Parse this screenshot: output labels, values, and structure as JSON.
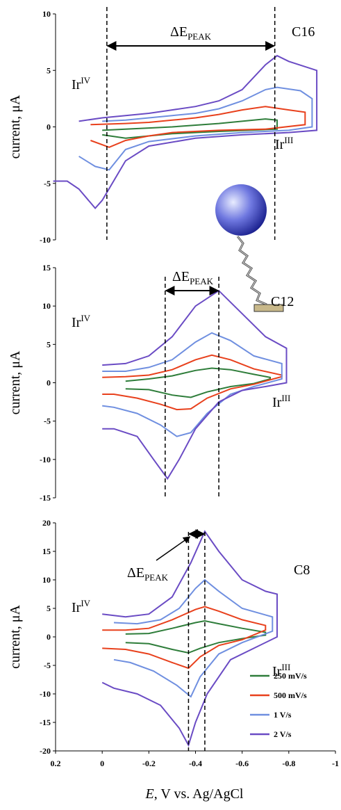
{
  "chart_data": [
    {
      "type": "line",
      "title": "C16",
      "ylabel": "current, μA",
      "xlim": [
        0.2,
        -1
      ],
      "ylim": [
        -10,
        10
      ],
      "yticks": [
        -10,
        -5,
        0,
        5,
        10
      ],
      "vlines": [
        -0.02,
        -0.74
      ],
      "annotations": [
        {
          "text": "ΔE",
          "sub": "PEAK"
        },
        {
          "text": "Ir",
          "sup": "IV"
        },
        {
          "text": "Ir",
          "sup": "III"
        }
      ],
      "series": [
        {
          "color": "#2e7d3a",
          "x": [
            0,
            -0.1,
            -0.3,
            -0.5,
            -0.7,
            -0.75,
            -0.75,
            -0.5,
            -0.3,
            -0.1,
            0
          ],
          "values": [
            -0.3,
            -0.2,
            0,
            0.3,
            0.7,
            0.6,
            -0.2,
            -0.4,
            -0.6,
            -1,
            -0.7
          ]
        },
        {
          "color": "#e8401c",
          "x": [
            0.05,
            -0.1,
            -0.2,
            -0.3,
            -0.4,
            -0.5,
            -0.6,
            -0.7,
            -0.8,
            -0.87,
            -0.87,
            -0.7,
            -0.5,
            -0.3,
            -0.2,
            -0.1,
            -0.03,
            0.05
          ],
          "values": [
            0.2,
            0.3,
            0.4,
            0.6,
            0.8,
            1.1,
            1.5,
            1.8,
            1.5,
            1.3,
            0.2,
            -0.2,
            -0.3,
            -0.5,
            -0.8,
            -1.2,
            -1.8,
            -1.2
          ]
        },
        {
          "color": "#6f8fe0",
          "x": [
            0,
            -0.1,
            -0.2,
            -0.3,
            -0.4,
            -0.5,
            -0.6,
            -0.7,
            -0.75,
            -0.85,
            -0.9,
            -0.9,
            -0.8,
            -0.6,
            -0.4,
            -0.2,
            -0.1,
            -0.03,
            0.03,
            0.1
          ],
          "values": [
            0.5,
            0.6,
            0.8,
            1,
            1.2,
            1.6,
            2.3,
            3.3,
            3.5,
            3.2,
            2.5,
            0,
            -0.3,
            -0.5,
            -0.8,
            -1.3,
            -2,
            -3.8,
            -3.5,
            -2.6
          ]
        },
        {
          "color": "#6a4bc4",
          "x": [
            0.1,
            0,
            -0.1,
            -0.2,
            -0.3,
            -0.4,
            -0.5,
            -0.6,
            -0.7,
            -0.75,
            -0.8,
            -0.92,
            -0.92,
            -0.8,
            -0.6,
            -0.4,
            -0.2,
            -0.1,
            0,
            0.03,
            0.1,
            0.15,
            0.21
          ],
          "values": [
            0.5,
            0.8,
            1,
            1.2,
            1.5,
            1.8,
            2.3,
            3.3,
            5.5,
            6.3,
            5.8,
            5,
            -0.3,
            -0.5,
            -0.7,
            -1,
            -1.7,
            -3,
            -6.5,
            -7.2,
            -5.5,
            -4.8,
            -4.8
          ]
        }
      ]
    },
    {
      "type": "line",
      "title": "C12",
      "ylabel": "current, μA",
      "xlim": [
        0.2,
        -1
      ],
      "ylim": [
        -15,
        15
      ],
      "yticks": [
        -15,
        -10,
        -5,
        0,
        5,
        10,
        15
      ],
      "vlines": [
        -0.27,
        -0.5
      ],
      "annotations": [
        {
          "text": "ΔE",
          "sub": "PEAK"
        },
        {
          "text": "Ir",
          "sup": "IV"
        },
        {
          "text": "Ir",
          "sup": "III"
        }
      ],
      "series": [
        {
          "color": "#2e7d3a",
          "x": [
            -0.1,
            -0.2,
            -0.3,
            -0.4,
            -0.47,
            -0.55,
            -0.65,
            -0.72,
            -0.72,
            -0.65,
            -0.55,
            -0.45,
            -0.38,
            -0.3,
            -0.2,
            -0.1
          ],
          "values": [
            0.2,
            0.5,
            0.9,
            1.6,
            1.9,
            1.7,
            1.1,
            0.7,
            0.5,
            -0.1,
            -0.5,
            -1.2,
            -1.9,
            -1.6,
            -0.9,
            -0.8
          ]
        },
        {
          "color": "#e8401c",
          "x": [
            0,
            -0.1,
            -0.2,
            -0.3,
            -0.4,
            -0.47,
            -0.55,
            -0.65,
            -0.77,
            -0.77,
            -0.65,
            -0.55,
            -0.45,
            -0.38,
            -0.32,
            -0.25,
            -0.15,
            -0.05,
            0
          ],
          "values": [
            0.7,
            0.8,
            1,
            1.7,
            3,
            3.6,
            3,
            1.8,
            1,
            0.8,
            -0.2,
            -0.8,
            -2,
            -3.4,
            -3.5,
            -2.8,
            -2,
            -1.5,
            -1.5
          ]
        },
        {
          "color": "#6f8fe0",
          "x": [
            0,
            -0.1,
            -0.2,
            -0.3,
            -0.4,
            -0.47,
            -0.55,
            -0.65,
            -0.77,
            -0.77,
            -0.65,
            -0.55,
            -0.45,
            -0.38,
            -0.32,
            -0.25,
            -0.15,
            -0.05,
            0
          ],
          "values": [
            1.5,
            1.5,
            2,
            3,
            5.3,
            6.5,
            5.5,
            3.5,
            2.5,
            0.5,
            -0.5,
            -1.5,
            -4,
            -6.5,
            -7,
            -5.5,
            -4,
            -3.2,
            -3
          ]
        },
        {
          "color": "#6a4bc4",
          "x": [
            0,
            -0.1,
            -0.2,
            -0.3,
            -0.4,
            -0.5,
            -0.6,
            -0.7,
            -0.79,
            -0.79,
            -0.7,
            -0.6,
            -0.5,
            -0.4,
            -0.33,
            -0.28,
            -0.22,
            -0.15,
            -0.1,
            -0.05,
            0
          ],
          "values": [
            2.3,
            2.5,
            3.5,
            6,
            10,
            12,
            9,
            6,
            4.5,
            0,
            -0.5,
            -1,
            -2.5,
            -6,
            -10,
            -12.5,
            -10,
            -7,
            -6.5,
            -6,
            -6
          ]
        }
      ]
    },
    {
      "type": "line",
      "title": "C8",
      "ylabel": "current, μA",
      "xlabel": [
        "E",
        ", V vs. Ag/AgCl"
      ],
      "xlim": [
        0.2,
        -1
      ],
      "xticks": [
        0.2,
        0,
        -0.2,
        -0.4,
        -0.6,
        -0.8,
        -1
      ],
      "ylim": [
        -20,
        20
      ],
      "yticks": [
        -20,
        -15,
        -10,
        -5,
        0,
        5,
        10,
        15,
        20
      ],
      "vlines": [
        -0.37,
        -0.44
      ],
      "legend": "lower right",
      "annotations": [
        {
          "text": "ΔE",
          "sub": "PEAK"
        },
        {
          "text": "Ir",
          "sup": "IV"
        },
        {
          "text": "Ir",
          "sup": "III"
        }
      ],
      "series": [
        {
          "name": "250 mV/s",
          "color": "#2e7d3a",
          "x": [
            -0.1,
            -0.2,
            -0.3,
            -0.4,
            -0.44,
            -0.5,
            -0.6,
            -0.7,
            -0.7,
            -0.6,
            -0.5,
            -0.42,
            -0.37,
            -0.3,
            -0.2,
            -0.1
          ],
          "values": [
            0.5,
            0.6,
            1.5,
            2.5,
            2.8,
            2.3,
            1.5,
            0.8,
            0.3,
            -0.3,
            -1,
            -2,
            -2.8,
            -2.2,
            -1.2,
            -1
          ]
        },
        {
          "name": "500 mV/s",
          "color": "#e8401c",
          "x": [
            0,
            -0.1,
            -0.2,
            -0.3,
            -0.4,
            -0.44,
            -0.5,
            -0.6,
            -0.7,
            -0.7,
            -0.6,
            -0.5,
            -0.42,
            -0.37,
            -0.3,
            -0.2,
            -0.1,
            0
          ],
          "values": [
            1.2,
            1.2,
            1.5,
            3,
            4.8,
            5.3,
            4.5,
            3,
            2,
            1.2,
            -0.5,
            -1.5,
            -3.5,
            -5.5,
            -4.5,
            -3,
            -2.2,
            -2
          ]
        },
        {
          "name": "1 V/s",
          "color": "#6f8fe0",
          "x": [
            -0.05,
            -0.15,
            -0.25,
            -0.33,
            -0.4,
            -0.44,
            -0.5,
            -0.6,
            -0.73,
            -0.73,
            -0.6,
            -0.5,
            -0.42,
            -0.38,
            -0.32,
            -0.22,
            -0.12,
            -0.05
          ],
          "values": [
            2.5,
            2.3,
            3,
            5,
            8.5,
            10,
            8,
            5,
            3.5,
            1,
            -1,
            -3,
            -7,
            -10.5,
            -8.5,
            -6,
            -4.5,
            -4
          ]
        },
        {
          "name": "2 V/s",
          "color": "#6a4bc4",
          "x": [
            0,
            -0.1,
            -0.2,
            -0.3,
            -0.38,
            -0.44,
            -0.5,
            -0.6,
            -0.7,
            -0.75,
            -0.75,
            -0.65,
            -0.55,
            -0.45,
            -0.4,
            -0.37,
            -0.33,
            -0.25,
            -0.15,
            -0.05,
            0
          ],
          "values": [
            4,
            3.5,
            4,
            7,
            13,
            18.5,
            15,
            10,
            8,
            7.5,
            0,
            -2,
            -4,
            -10,
            -15,
            -19,
            -16,
            -12,
            -10,
            -9,
            -8
          ]
        }
      ]
    }
  ]
}
